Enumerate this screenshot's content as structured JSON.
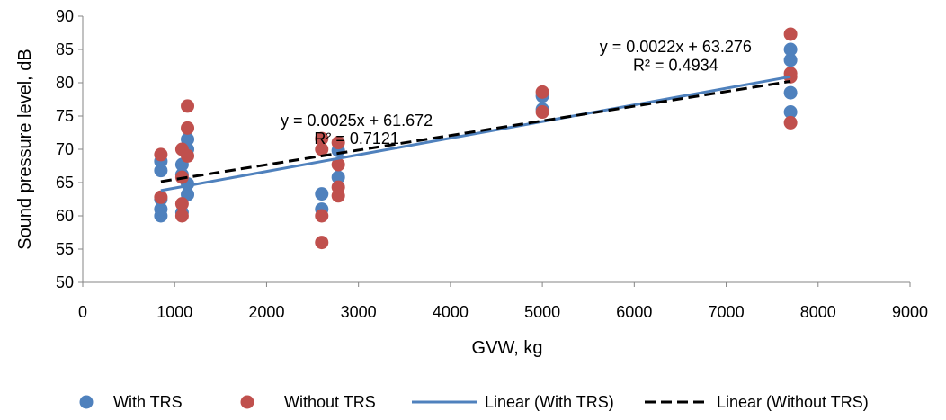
{
  "chart_data": {
    "type": "scatter",
    "xlabel": "GVW, kg",
    "ylabel": "Sound pressure level, dB",
    "xlim": [
      0,
      9000
    ],
    "ylim": [
      50,
      90
    ],
    "xticks": [
      0,
      1000,
      2000,
      3000,
      4000,
      5000,
      6000,
      7000,
      8000,
      9000
    ],
    "yticks": [
      50,
      55,
      60,
      65,
      70,
      75,
      80,
      85,
      90
    ],
    "grid": false,
    "legend_position": "bottom",
    "series": [
      {
        "name": "With TRS",
        "kind": "scatter",
        "color": "#4f81bd",
        "points": [
          [
            850,
            60.0
          ],
          [
            850,
            61.0
          ],
          [
            850,
            62.5
          ],
          [
            850,
            66.8
          ],
          [
            850,
            68.2
          ],
          [
            1080,
            60.5
          ],
          [
            1080,
            66.2
          ],
          [
            1080,
            67.7
          ],
          [
            1140,
            63.2
          ],
          [
            1140,
            64.8
          ],
          [
            1140,
            70.0
          ],
          [
            1140,
            71.5
          ],
          [
            2600,
            61.0
          ],
          [
            2600,
            63.3
          ],
          [
            2780,
            65.8
          ],
          [
            2780,
            69.8
          ],
          [
            5000,
            76.0
          ],
          [
            5000,
            78.0
          ],
          [
            7700,
            75.6
          ],
          [
            7700,
            78.5
          ],
          [
            7700,
            83.4
          ],
          [
            7700,
            85.0
          ]
        ]
      },
      {
        "name": "Without TRS",
        "kind": "scatter",
        "color": "#c0504d",
        "points": [
          [
            850,
            62.8
          ],
          [
            850,
            69.2
          ],
          [
            1080,
            60.0
          ],
          [
            1080,
            61.8
          ],
          [
            1080,
            65.8
          ],
          [
            1080,
            70.0
          ],
          [
            1140,
            69.0
          ],
          [
            1140,
            73.2
          ],
          [
            1140,
            76.5
          ],
          [
            2600,
            56.0
          ],
          [
            2600,
            60.0
          ],
          [
            2600,
            70.0
          ],
          [
            2600,
            71.6
          ],
          [
            2780,
            63.0
          ],
          [
            2780,
            64.3
          ],
          [
            2780,
            67.7
          ],
          [
            2780,
            71.0
          ],
          [
            5000,
            75.6
          ],
          [
            5000,
            78.6
          ],
          [
            7700,
            74.0
          ],
          [
            7700,
            80.9
          ],
          [
            7700,
            81.4
          ],
          [
            7700,
            87.3
          ]
        ]
      },
      {
        "name": "Linear (With TRS)",
        "kind": "trendline",
        "color": "#4f81bd",
        "dash": false,
        "slope": 0.0025,
        "intercept": 61.672,
        "x_range": [
          850,
          7700
        ]
      },
      {
        "name": "Linear (Without TRS)",
        "kind": "trendline",
        "color": "#000000",
        "dash": true,
        "slope": 0.0022,
        "intercept": 63.276,
        "x_range": [
          850,
          7700
        ]
      }
    ],
    "annotations": [
      {
        "text": "y = 0.0025x + 61.672",
        "x": 2980,
        "y": 73.5
      },
      {
        "text": "R² = 0.7121",
        "x": 2980,
        "y": 70.8
      },
      {
        "text": "y = 0.0022x + 63.276",
        "x": 6450,
        "y": 84.6
      },
      {
        "text": "R² = 0.4934",
        "x": 6450,
        "y": 81.8
      }
    ]
  }
}
